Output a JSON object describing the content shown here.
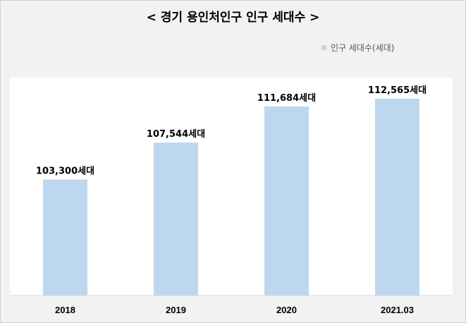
{
  "chart_data": {
    "type": "bar",
    "title": "< 경기 용인처인구 인구 세대수 >",
    "categories": [
      "2018",
      "2019",
      "2020",
      "2021.03"
    ],
    "series": [
      {
        "name": "인구 세대수(세대)",
        "values": [
          103300,
          107544,
          111684,
          112565
        ],
        "labels": [
          "103,300세대",
          "107,544세대",
          "111,684세대",
          "112,565세대"
        ]
      }
    ],
    "xlabel": "",
    "ylabel": "",
    "ylim": [
      90000,
      115000
    ],
    "grid": false,
    "legend": "top-right",
    "colors": {
      "bar": "#bdd7ee",
      "plot_background": "#ffffff",
      "chart_background": "#f2f2f2",
      "axis": "#d9d9d9"
    }
  }
}
